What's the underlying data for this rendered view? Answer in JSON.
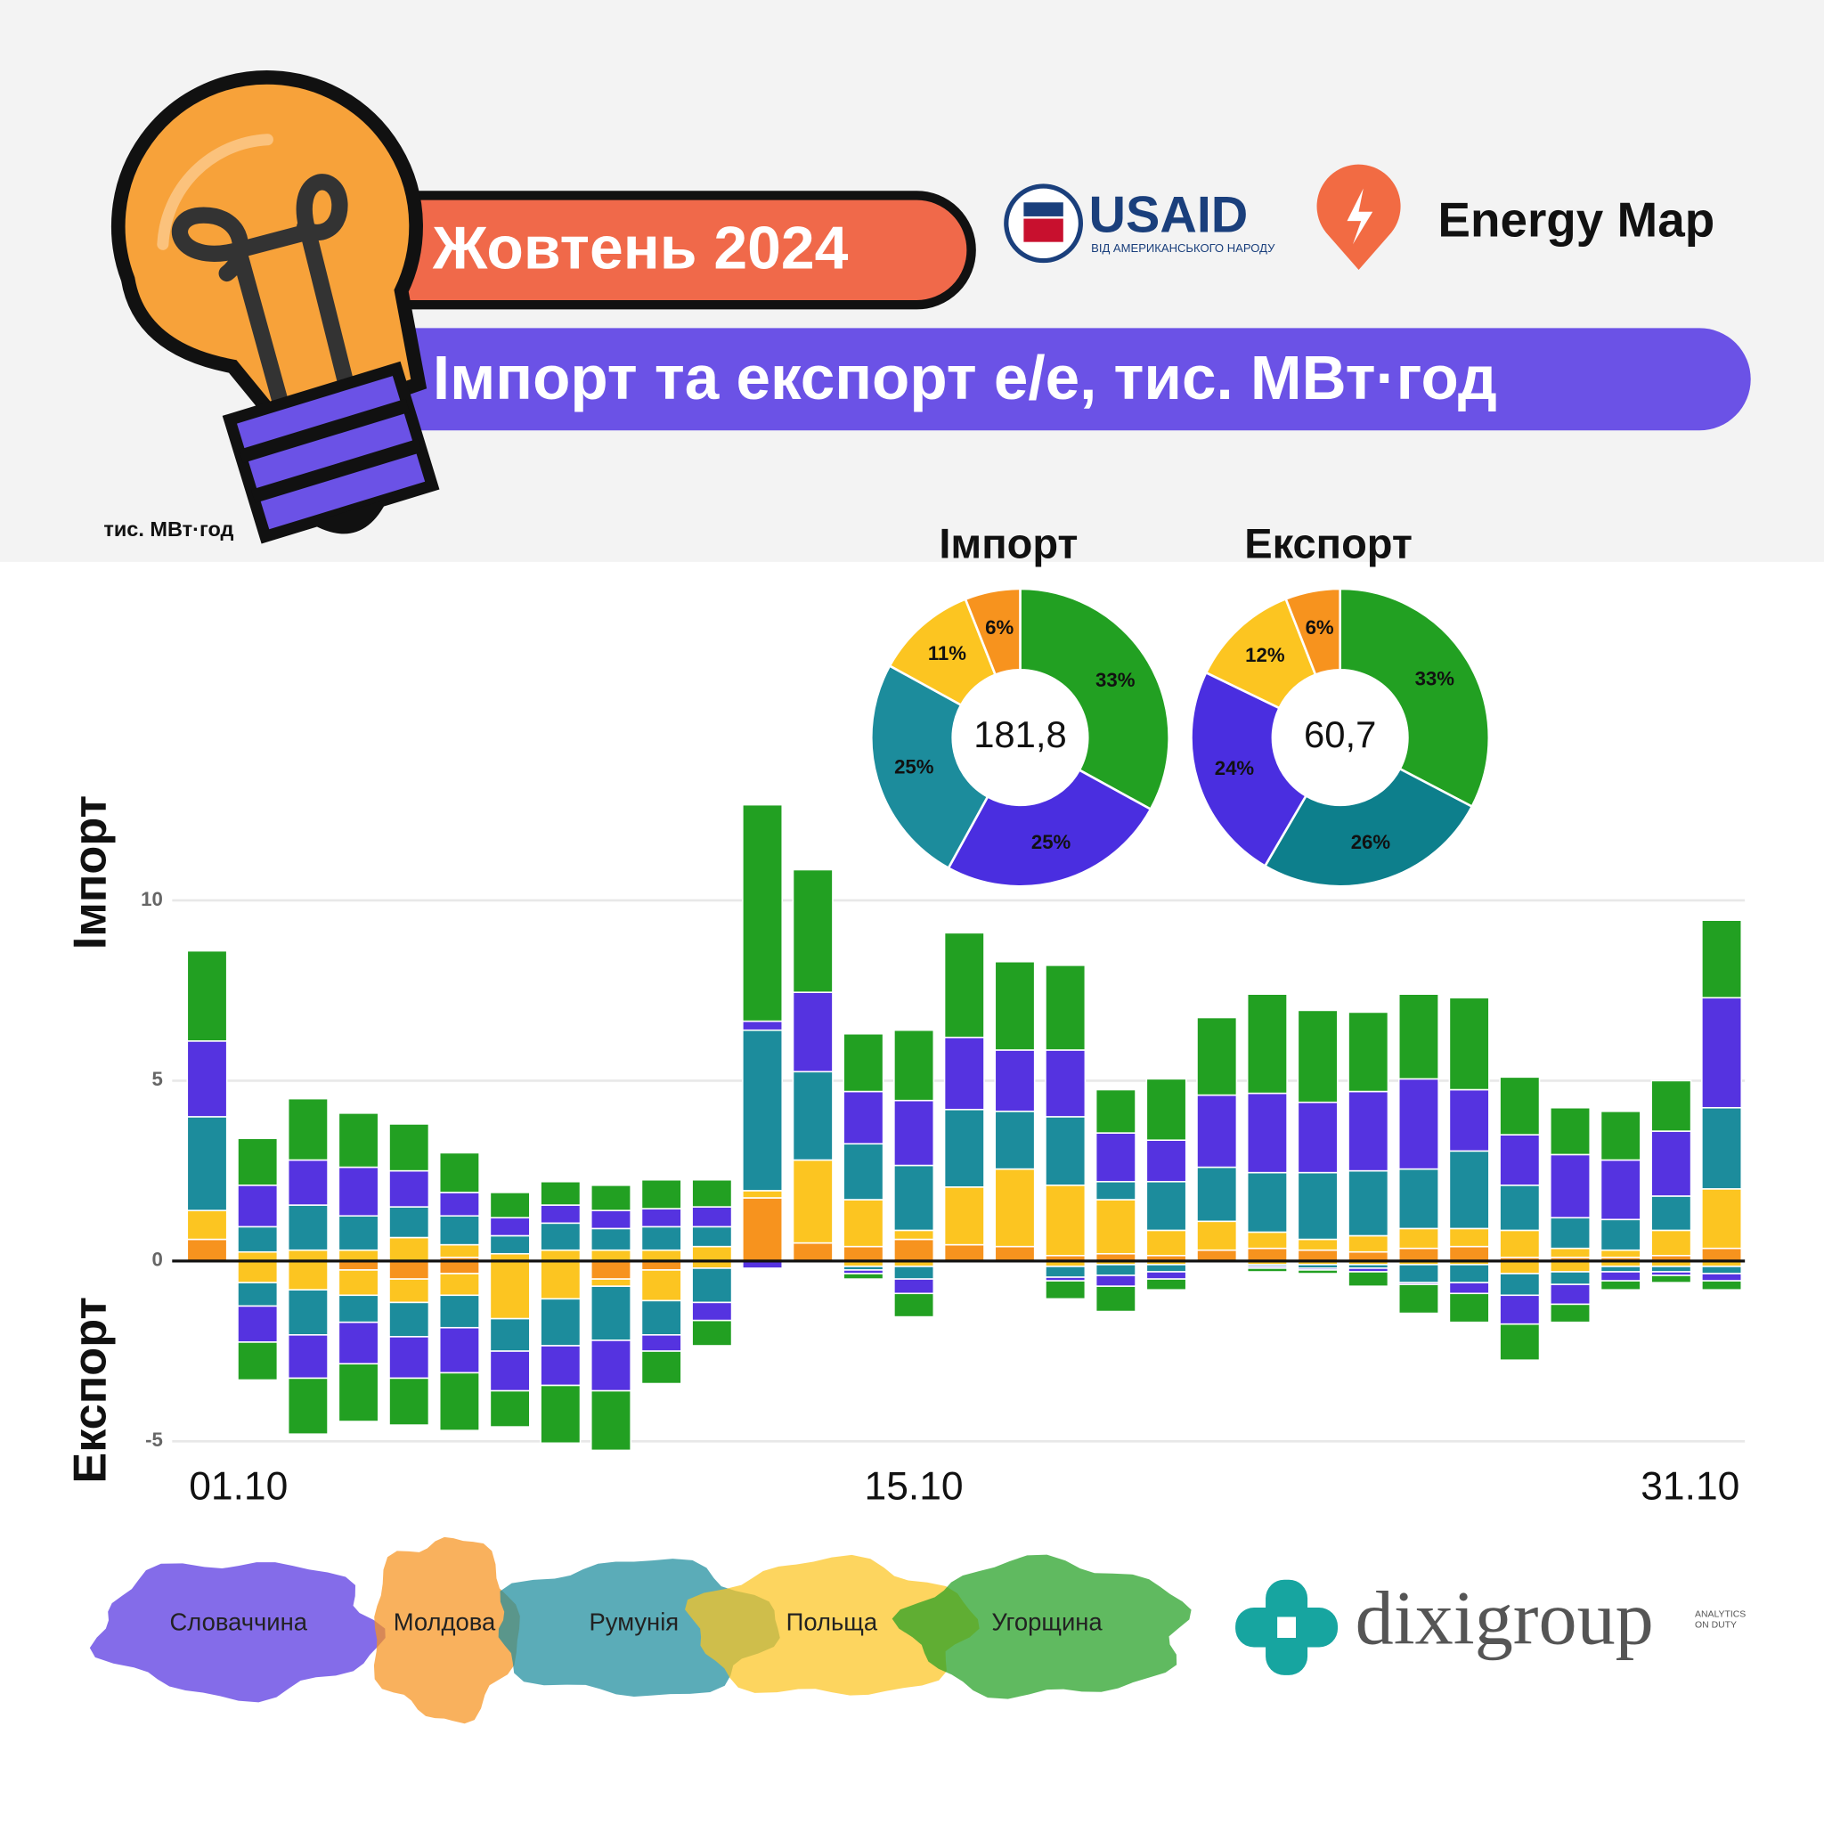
{
  "header": {
    "month": "Жовтень 2024",
    "title": "Імпорт та експорт е/е, тис. МВт·год",
    "usaid": "USAID",
    "usaid_tagline": "ВІД АМЕРИКАНСЬКОГО НАРОДУ",
    "energy_map": "Energy Map"
  },
  "footer": {
    "brand": "dixigroup",
    "tagline_1": "ANALYTICS",
    "tagline_2": "ON DUTY"
  },
  "chart_data": [
    {
      "type": "bar",
      "stacked": true,
      "unit_label": "тис. МВт·год",
      "y_label_top": "Імпорт",
      "y_label_bottom": "Експорт",
      "categories": [
        "01.10",
        null,
        null,
        null,
        null,
        null,
        null,
        null,
        null,
        null,
        null,
        null,
        null,
        null,
        "15.10",
        null,
        null,
        null,
        null,
        null,
        null,
        null,
        null,
        null,
        null,
        null,
        null,
        null,
        null,
        null,
        "31.10"
      ],
      "series": [
        {
          "name": "Словаччина",
          "color": "#5533e0",
          "values": [
            2.1,
            1.15,
            1.25,
            1.35,
            1.0,
            0.65,
            0.5,
            0.5,
            0.5,
            0.5,
            0.55,
            0.25,
            2.2,
            1.45,
            1.8,
            2.0,
            1.7,
            1.85,
            1.35,
            1.15,
            2.0,
            2.2,
            1.95,
            2.2,
            2.5,
            1.7,
            1.4,
            1.75,
            1.65,
            1.8,
            3.05
          ],
          "export_values": [
            0,
            -1.0,
            -1.2,
            -1.15,
            -1.15,
            -1.25,
            -1.1,
            -1.1,
            -1.4,
            -0.45,
            -0.5,
            -0.2,
            0,
            -0.1,
            -0.4,
            0,
            0,
            -0.1,
            -0.3,
            -0.2,
            0,
            -0.05,
            -0.05,
            -0.1,
            -0.05,
            -0.3,
            -0.8,
            -0.55,
            -0.25,
            -0.1,
            -0.2
          ]
        },
        {
          "name": "Молдова",
          "color": "#f7931e",
          "values": [
            0.6,
            0,
            0,
            0,
            0,
            0.1,
            0,
            0,
            0,
            0,
            0,
            1.75,
            0.5,
            0.4,
            0.6,
            0.45,
            0.4,
            0.15,
            0.2,
            0.15,
            0.3,
            0.35,
            0.3,
            0.25,
            0.35,
            0.4,
            0.1,
            0.1,
            0.1,
            0.15,
            0.35
          ],
          "export_values": [
            0,
            0,
            0,
            -0.25,
            -0.5,
            -0.35,
            0,
            0,
            -0.5,
            -0.25,
            0,
            0,
            0,
            0,
            0,
            0,
            0,
            0,
            0,
            0,
            0,
            0,
            0,
            0,
            0,
            0,
            0,
            0,
            0,
            0,
            0
          ]
        },
        {
          "name": "Румунія",
          "color": "#1c8c9c",
          "values": [
            2.6,
            0.7,
            1.25,
            0.95,
            0.85,
            0.8,
            0.5,
            0.75,
            0.6,
            0.65,
            0.55,
            4.45,
            2.45,
            1.55,
            1.8,
            2.15,
            1.6,
            1.9,
            0.5,
            1.35,
            1.5,
            1.65,
            1.85,
            1.8,
            1.65,
            2.15,
            1.25,
            0.85,
            0.85,
            0.95,
            2.25
          ],
          "export_values": [
            0,
            -0.65,
            -1.25,
            -0.75,
            -0.95,
            -0.9,
            -0.9,
            -1.3,
            -1.5,
            -0.95,
            -0.95,
            0,
            0,
            -0.1,
            -0.35,
            0,
            0,
            -0.3,
            -0.3,
            -0.2,
            0,
            -0.05,
            -0.1,
            -0.1,
            -0.5,
            -0.5,
            -0.6,
            -0.35,
            -0.15,
            -0.15,
            -0.2
          ]
        },
        {
          "name": "Польща",
          "color": "#fcc521",
          "values": [
            0.8,
            0.25,
            0.3,
            0.3,
            0.65,
            0.35,
            0.2,
            0.3,
            0.3,
            0.3,
            0.4,
            0.2,
            2.3,
            1.3,
            0.25,
            1.6,
            2.15,
            1.95,
            1.5,
            0.7,
            0.8,
            0.45,
            0.3,
            0.45,
            0.55,
            0.5,
            0.75,
            0.25,
            0.2,
            0.7,
            1.65
          ],
          "export_values": [
            0,
            -0.6,
            -0.8,
            -0.7,
            -0.65,
            -0.6,
            -1.6,
            -1.05,
            -0.2,
            -0.85,
            -0.2,
            0,
            0,
            -0.15,
            -0.15,
            0,
            0,
            -0.15,
            -0.1,
            -0.1,
            0,
            -0.1,
            -0.1,
            -0.1,
            -0.1,
            -0.1,
            -0.35,
            -0.3,
            -0.15,
            -0.15,
            -0.15
          ]
        },
        {
          "name": "Угорщина",
          "color": "#22a022",
          "values": [
            2.5,
            1.3,
            1.7,
            1.5,
            1.3,
            1.1,
            0.7,
            0.65,
            0.7,
            0.8,
            0.75,
            6.0,
            3.4,
            1.6,
            1.95,
            2.9,
            2.45,
            2.35,
            1.2,
            1.7,
            2.15,
            2.75,
            2.55,
            2.2,
            2.35,
            2.55,
            1.6,
            1.3,
            1.35,
            1.4,
            2.15
          ],
          "export_values": [
            0,
            -1.05,
            -1.55,
            -1.6,
            -1.3,
            -1.6,
            -1.0,
            -1.6,
            -1.65,
            -0.9,
            -0.7,
            0,
            0,
            -0.15,
            -0.65,
            0,
            0,
            -0.5,
            -0.7,
            -0.3,
            0,
            -0.1,
            -0.1,
            -0.4,
            -0.8,
            -0.8,
            -1.0,
            -0.5,
            -0.25,
            -0.2,
            -0.25
          ]
        }
      ],
      "ylim": [
        -5.4,
        13
      ],
      "yticks": [
        -5,
        0,
        5,
        10
      ],
      "grid": true
    },
    {
      "type": "pie",
      "donut": true,
      "title": "Імпорт",
      "total": {
        "value": 181.8,
        "label": "181,8"
      },
      "values": [
        33,
        25,
        25,
        11,
        6
      ],
      "value_labels": [
        "33%",
        "25%",
        "25%",
        "11%",
        "6%"
      ],
      "colors": [
        "#22a022",
        "#4a2ee0",
        "#1c8c9c",
        "#fcc521",
        "#f7931e"
      ]
    },
    {
      "type": "pie",
      "donut": true,
      "title": "Експорт",
      "total": {
        "value": 60.7,
        "label": "60,7"
      },
      "values": [
        33,
        26,
        24,
        12,
        6
      ],
      "value_labels": [
        "33%",
        "26%",
        "24%",
        "12%",
        "6%"
      ],
      "colors": [
        "#22a022",
        "#0d7f8c",
        "#4a2ee0",
        "#fcc521",
        "#f7931e"
      ]
    }
  ]
}
